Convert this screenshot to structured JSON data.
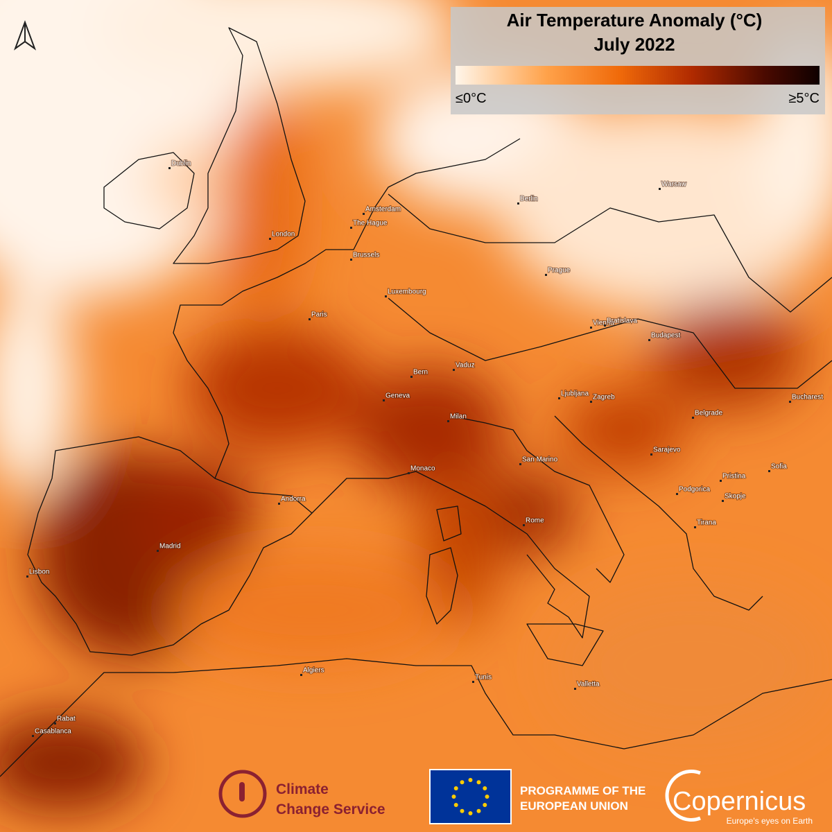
{
  "header": {
    "title": "Air Temperature Anomaly (°C)",
    "subtitle": "July 2022"
  },
  "legend": {
    "min_label": "≤0°C",
    "max_label": "≥5°C"
  },
  "cities": [
    "Dublin",
    "London",
    "Amsterdam",
    "The Hague",
    "Brussels",
    "Luxembourg",
    "Paris",
    "Berlin",
    "Warsaw",
    "Prague",
    "Vienna",
    "Bratislava",
    "Budapest",
    "Bern",
    "Vaduz",
    "Geneva",
    "Milan",
    "Ljubljana",
    "Zagreb",
    "Bucharest",
    "Belgrade",
    "Monaco",
    "San Marino",
    "Sarajevo",
    "Sofia",
    "Pristina",
    "Podgorica",
    "Skopje",
    "Andorra",
    "Madrid",
    "Lisbon",
    "Rome",
    "Tirana",
    "Algiers",
    "Tunis",
    "Valletta",
    "Rabat",
    "Casablanca"
  ],
  "footer": {
    "c3s_line1": "Climate",
    "c3s_line2": "Change Service",
    "eu_line1": "PROGRAMME OF THE",
    "eu_line2": "EUROPEAN UNION",
    "copernicus": "Copernicus",
    "copernicus_tagline": "Europe's eyes on Earth"
  }
}
